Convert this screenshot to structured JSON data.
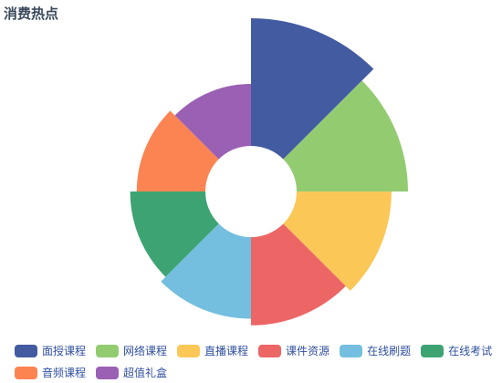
{
  "title": "消费热点",
  "chart_data": {
    "type": "pie",
    "variant": "nightingale-rose",
    "title": "消费热点",
    "categories": [
      "面授课程",
      "网络课程",
      "直播课程",
      "课件资源",
      "在线刷题",
      "在线考试",
      "音频课程",
      "超值礼盒"
    ],
    "values": [
      40,
      35,
      30,
      28,
      26,
      24,
      22,
      20
    ],
    "colors": [
      "#435ba0",
      "#93cb71",
      "#fbc858",
      "#ed6666",
      "#74bfdf",
      "#3da373",
      "#fc8453",
      "#9a60b4"
    ],
    "legend_position": "bottom"
  },
  "legend": [
    {
      "label": "面授课程",
      "color": "#435ba0"
    },
    {
      "label": "网络课程",
      "color": "#93cb71"
    },
    {
      "label": "直播课程",
      "color": "#fbc858"
    },
    {
      "label": "课件资源",
      "color": "#ed6666"
    },
    {
      "label": "在线刷题",
      "color": "#74bfdf"
    },
    {
      "label": "在线考试",
      "color": "#3da373"
    },
    {
      "label": "音频课程",
      "color": "#fc8453"
    },
    {
      "label": "超值礼盒",
      "color": "#9a60b4"
    }
  ]
}
